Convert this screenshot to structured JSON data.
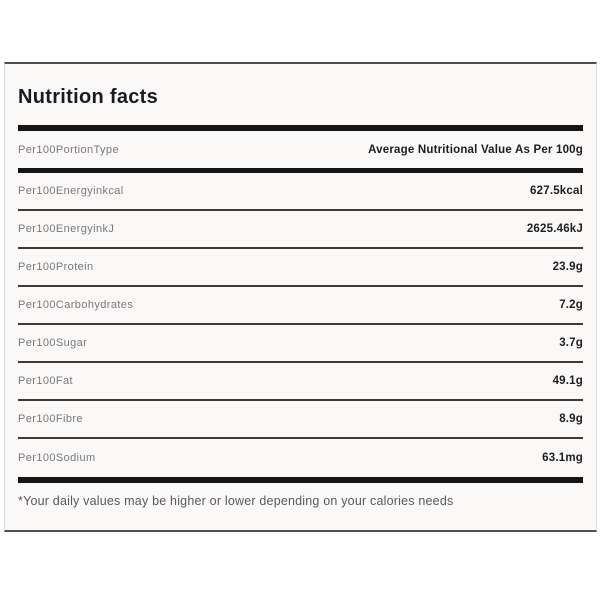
{
  "title": "Nutrition facts",
  "header": {
    "label": "Per100PortionType",
    "value": "Average Nutritional Value As Per 100g"
  },
  "rows": [
    {
      "label": "Per100Energyinkcal",
      "value": "627.5kcal"
    },
    {
      "label": "Per100EnergyinkJ",
      "value": "2625.46kJ"
    },
    {
      "label": "Per100Protein",
      "value": "23.9g"
    },
    {
      "label": "Per100Carbohydrates",
      "value": "7.2g"
    },
    {
      "label": "Per100Sugar",
      "value": "3.7g"
    },
    {
      "label": "Per100Fat",
      "value": "49.1g"
    },
    {
      "label": "Per100Fibre",
      "value": "8.9g"
    },
    {
      "label": "Per100Sodium",
      "value": "63.1mg"
    }
  ],
  "footnote": "*Your daily values may be higher or lower depending on your calories needs",
  "colors": {
    "card_background": "#faf9f8",
    "heavy_rule": "#151515",
    "row_separator": "#3b3b3b",
    "label_text": "#78787b",
    "value_text": "#1d1d20",
    "title_text": "#1a1a22",
    "footnote_text": "#59595b",
    "card_border_dark": "#4f4f4f",
    "card_border_light": "#dcdcdc"
  }
}
